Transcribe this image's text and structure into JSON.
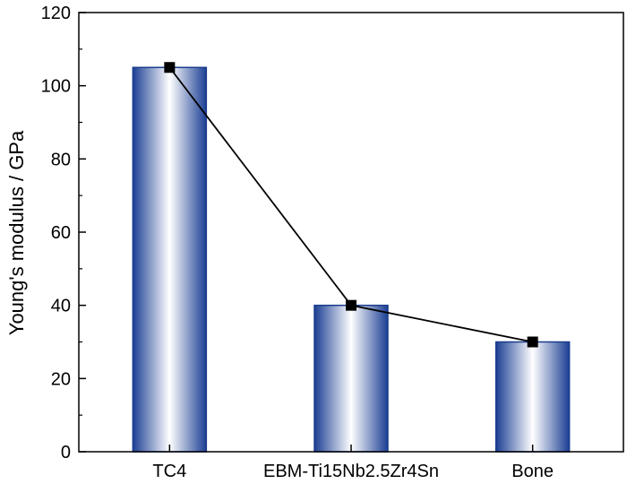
{
  "chart_data": {
    "type": "bar",
    "categories": [
      "TC4",
      "EBM-Ti15Nb2.5Zr4Sn",
      "Bone"
    ],
    "values": [
      105,
      40,
      30
    ],
    "overlay": {
      "type": "line",
      "marker": "square",
      "values": [
        105,
        40,
        30
      ]
    },
    "xlabel": "",
    "ylabel": "Young's modulus / GPa",
    "ylim": [
      0,
      120
    ],
    "yticks": [
      0,
      20,
      40,
      60,
      80,
      100,
      120
    ],
    "grid": false,
    "legend": "none",
    "colors": {
      "bar_edge": "#1a3c8c",
      "bar_dark": "#1c3f94",
      "bar_light": "#ffffff",
      "line": "#000000",
      "marker": "#000000"
    }
  }
}
